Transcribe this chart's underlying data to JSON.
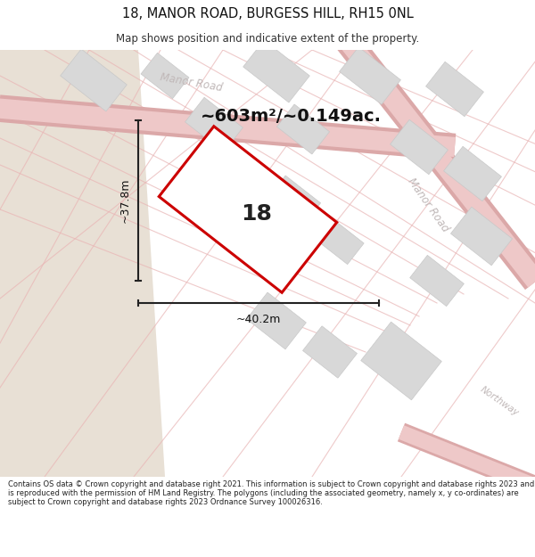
{
  "title_line1": "18, MANOR ROAD, BURGESS HILL, RH15 0NL",
  "title_line2": "Map shows position and indicative extent of the property.",
  "area_text": "~603m²/~0.149ac.",
  "property_number": "18",
  "width_label": "~40.2m",
  "height_label": "~37.8m",
  "footer_text": "Contains OS data © Crown copyright and database right 2021. This information is subject to Crown copyright and database rights 2023 and is reproduced with the permission of HM Land Registry. The polygons (including the associated geometry, namely x, y co-ordinates) are subject to Crown copyright and database rights 2023 Ordnance Survey 100026316.",
  "title_bg": "#ffffff",
  "footer_bg": "#ffffff",
  "map_bg": "#f0ede8",
  "main_area_bg": "#f5f3ef",
  "beige_area": "#e8e0d5",
  "plot_fill": "#ffffff",
  "plot_edge": "#cc0000",
  "road_outer": "#dba8a8",
  "road_inner": "#eec8c8",
  "road_line": "#e8b4b4",
  "building_fill": "#d8d8d8",
  "building_edge": "#c8c8c8",
  "road_label": "#c0b8b8",
  "dim_color": "#222222",
  "title_fontsize": 10.5,
  "subtitle_fontsize": 8.5,
  "area_fontsize": 14,
  "num_fontsize": 18,
  "footer_fontsize": 6.0
}
